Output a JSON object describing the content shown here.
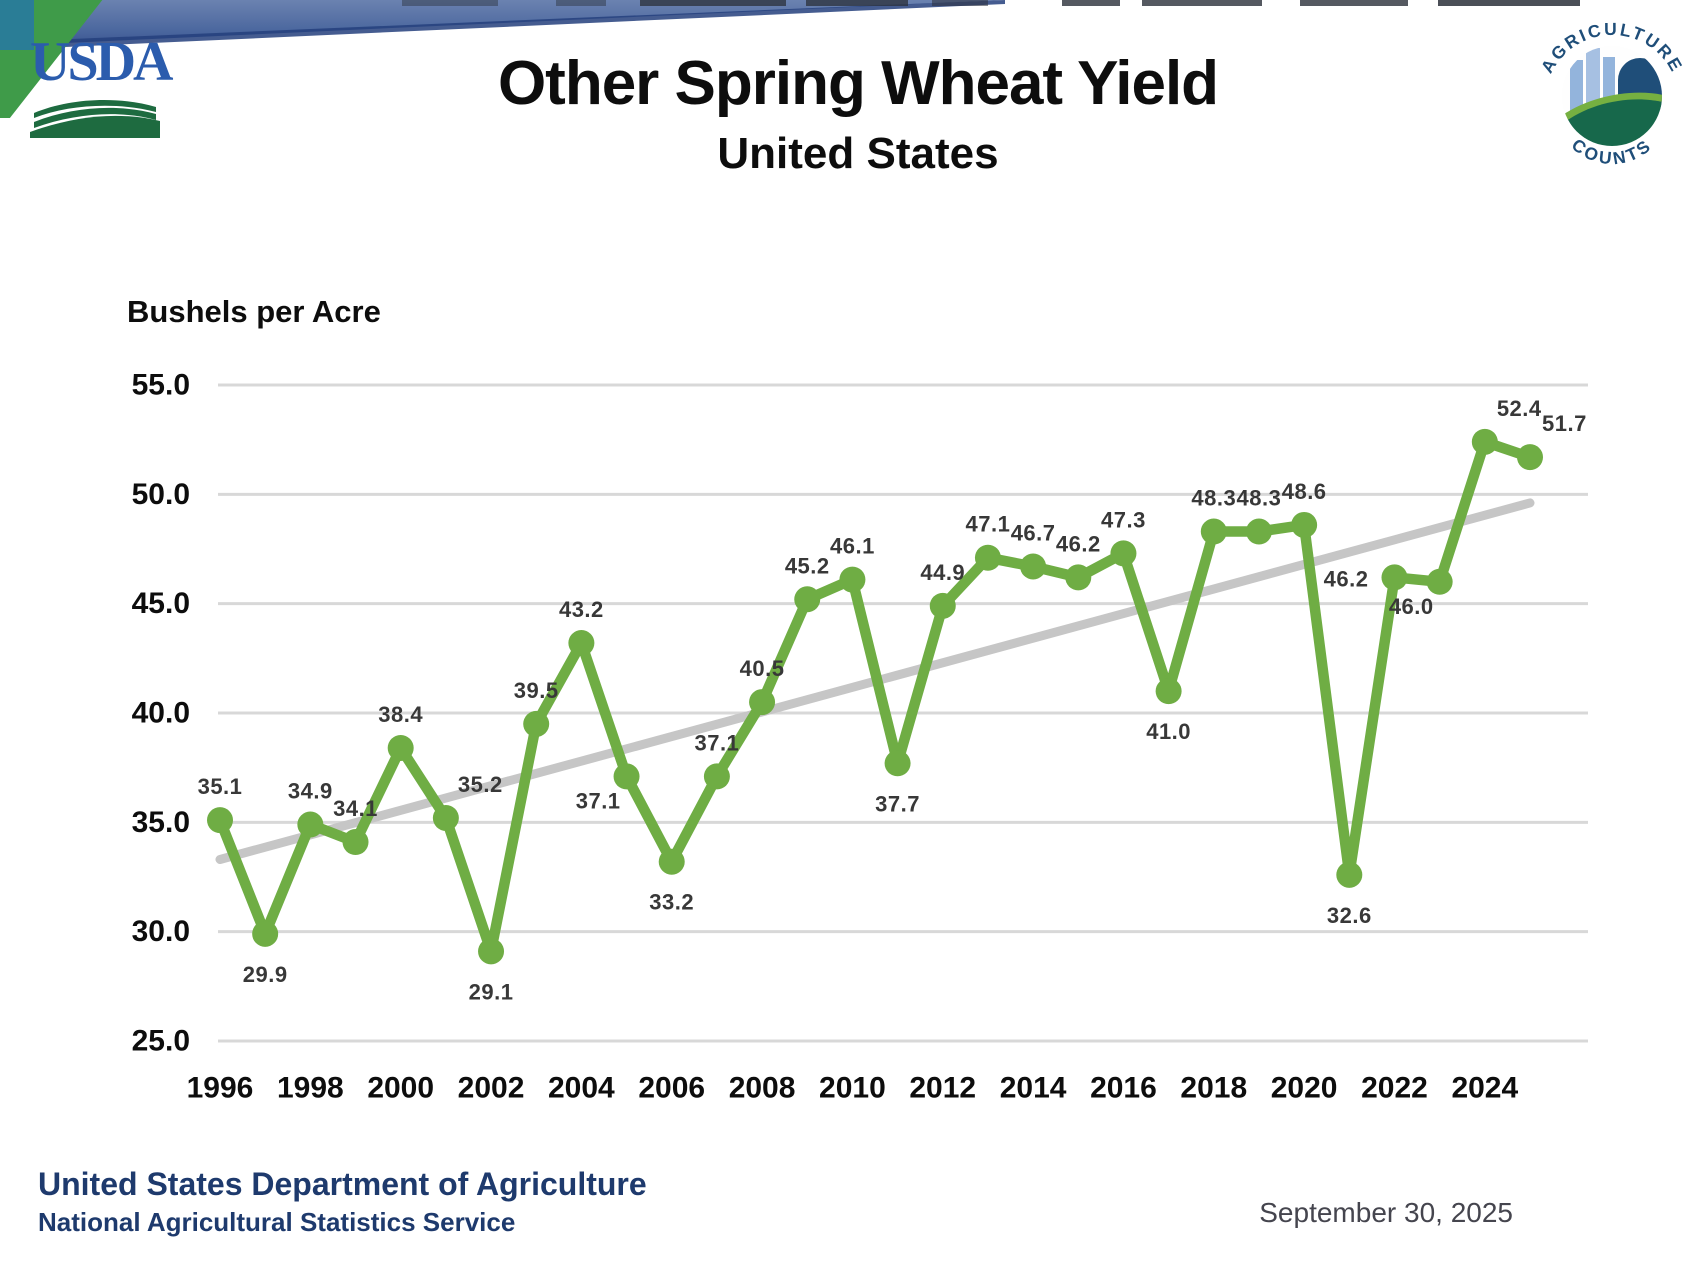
{
  "header": {
    "title": "Other Spring Wheat Yield",
    "subtitle": "United States"
  },
  "logos": {
    "usda_text": "USDA",
    "agcounts_top": "AGRICULTURE",
    "agcounts_bottom": "COUNTS"
  },
  "footer": {
    "department": "United States Department of Agriculture",
    "agency": "National Agricultural Statistics Service",
    "date": "September 30, 2025"
  },
  "colors": {
    "banner_blue": "#4c689f",
    "banner_navy": "#24407c",
    "corner_teal": "#2a7d96",
    "corner_green": "#3f9b49",
    "usda_blue": "#2b5cad",
    "usda_green": "#1e6b40",
    "agcounts_navy": "#1f4e79",
    "footer_navy": "#1e3a6d",
    "date_gray": "#45454e"
  },
  "chart_data": {
    "type": "line",
    "title": "Other Spring Wheat Yield",
    "subtitle": "United States",
    "ylabel": "Bushels per Acre",
    "xlabel": "",
    "ylim": [
      25.0,
      55.0
    ],
    "xlim": [
      1996,
      2025
    ],
    "ytick_interval": 5.0,
    "grid": true,
    "legend": false,
    "trendline": "linear",
    "yticks": [
      "55.0",
      "50.0",
      "45.0",
      "40.0",
      "35.0",
      "30.0",
      "25.0"
    ],
    "xticks": [
      "1996",
      "1998",
      "2000",
      "2002",
      "2004",
      "2006",
      "2008",
      "2010",
      "2012",
      "2014",
      "2016",
      "2018",
      "2020",
      "2022",
      "2024"
    ],
    "colors": {
      "line": "#6fad44",
      "trend": "#c6c6c6",
      "grid": "#d8d8d8",
      "data_label": "#383838",
      "tick_label": "#0d0d0d"
    },
    "points": [
      {
        "year": 1996,
        "value": 35.1,
        "label": "35.1",
        "label_pos": "above"
      },
      {
        "year": 1997,
        "value": 29.9,
        "label": "29.9",
        "label_pos": "below"
      },
      {
        "year": 1998,
        "value": 34.9,
        "label": "34.9",
        "label_pos": "above"
      },
      {
        "year": 1999,
        "value": 34.1,
        "label": "34.1",
        "label_pos": "above"
      },
      {
        "year": 2000,
        "value": 38.4,
        "label": "38.4",
        "label_pos": "above"
      },
      {
        "year": 2001,
        "value": 35.2,
        "label": "35.2",
        "label_pos": "above-right"
      },
      {
        "year": 2002,
        "value": 29.1,
        "label": "29.1",
        "label_pos": "below"
      },
      {
        "year": 2003,
        "value": 39.5,
        "label": "39.5",
        "label_pos": "above"
      },
      {
        "year": 2004,
        "value": 43.2,
        "label": "43.2",
        "label_pos": "above"
      },
      {
        "year": 2005,
        "value": 37.1,
        "label": "37.1",
        "label_pos": "below-left"
      },
      {
        "year": 2006,
        "value": 33.2,
        "label": "33.2",
        "label_pos": "below"
      },
      {
        "year": 2007,
        "value": 37.1,
        "label": "37.1",
        "label_pos": "above"
      },
      {
        "year": 2008,
        "value": 40.5,
        "label": "40.5",
        "label_pos": "above"
      },
      {
        "year": 2009,
        "value": 45.2,
        "label": "45.2",
        "label_pos": "above"
      },
      {
        "year": 2010,
        "value": 46.1,
        "label": "46.1",
        "label_pos": "above"
      },
      {
        "year": 2011,
        "value": 37.7,
        "label": "37.7",
        "label_pos": "below"
      },
      {
        "year": 2012,
        "value": 44.9,
        "label": "44.9",
        "label_pos": "above"
      },
      {
        "year": 2013,
        "value": 47.1,
        "label": "47.1",
        "label_pos": "above"
      },
      {
        "year": 2014,
        "value": 46.7,
        "label": "46.7",
        "label_pos": "above"
      },
      {
        "year": 2015,
        "value": 46.2,
        "label": "46.2",
        "label_pos": "above"
      },
      {
        "year": 2016,
        "value": 47.3,
        "label": "47.3",
        "label_pos": "above"
      },
      {
        "year": 2017,
        "value": 41.0,
        "label": "41.0",
        "label_pos": "below"
      },
      {
        "year": 2018,
        "value": 48.3,
        "label": "48.3",
        "label_pos": "above"
      },
      {
        "year": 2019,
        "value": 48.3,
        "label": "48.3",
        "label_pos": "above"
      },
      {
        "year": 2020,
        "value": 48.6,
        "label": "48.6",
        "label_pos": "above"
      },
      {
        "year": 2021,
        "value": 32.6,
        "label": "32.6",
        "label_pos": "below"
      },
      {
        "year": 2022,
        "value": 46.2,
        "label": "46.2",
        "label_pos": "left"
      },
      {
        "year": 2023,
        "value": 46.0,
        "label": "46.0",
        "label_pos": "below-left"
      },
      {
        "year": 2024,
        "value": 52.4,
        "label": "52.4",
        "label_pos": "above-right"
      },
      {
        "year": 2025,
        "value": 51.7,
        "label": "51.7",
        "label_pos": "above-right"
      }
    ]
  }
}
